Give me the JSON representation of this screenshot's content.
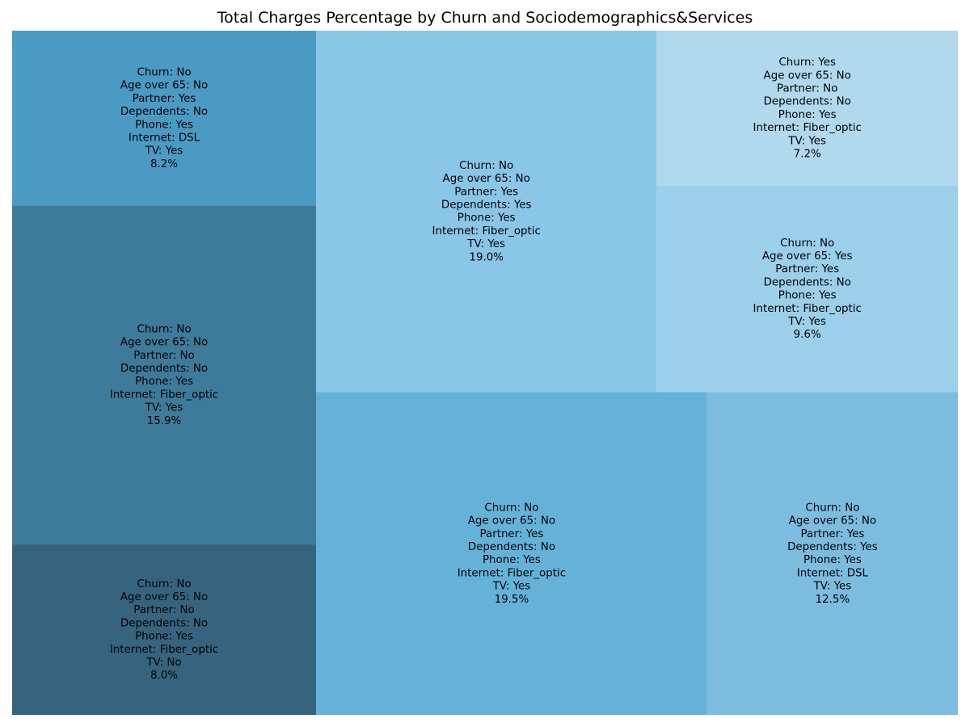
{
  "chart_data": {
    "type": "treemap",
    "title": "Total Charges Percentage by Churn and Sociodemographics&Services",
    "tiles": [
      {
        "lines": [
          "Churn: No",
          "Age over 65: No",
          "Partner: Yes",
          "Dependents: No",
          "Phone: Yes",
          "Internet: DSL",
          "TV: Yes",
          "8.2%"
        ],
        "value": 8.2,
        "color": "#4b9ac3"
      },
      {
        "lines": [
          "Churn: No",
          "Age over 65: No",
          "Partner: No",
          "Dependents: No",
          "Phone: Yes",
          "Internet: Fiber_optic",
          "TV: Yes",
          "15.9%"
        ],
        "value": 15.9,
        "color": "#3e7a99"
      },
      {
        "lines": [
          "Churn: No",
          "Age over 65: No",
          "Partner: No",
          "Dependents: No",
          "Phone: Yes",
          "Internet: Fiber_optic",
          "TV: No",
          "8.0%"
        ],
        "value": 8.0,
        "color": "#36647e"
      },
      {
        "lines": [
          "Churn: No",
          "Age over 65: No",
          "Partner: Yes",
          "Dependents: Yes",
          "Phone: Yes",
          "Internet: Fiber_optic",
          "TV: Yes",
          "19.0%"
        ],
        "value": 19.0,
        "color": "#89c6e7"
      },
      {
        "lines": [
          "Churn: No",
          "Age over 65: No",
          "Partner: Yes",
          "Dependents: No",
          "Phone: Yes",
          "Internet: Fiber_optic",
          "TV: Yes",
          "19.5%"
        ],
        "value": 19.5,
        "color": "#65b2d9"
      },
      {
        "lines": [
          "Churn: Yes",
          "Age over 65: No",
          "Partner: No",
          "Dependents: No",
          "Phone: Yes",
          "Internet: Fiber_optic",
          "TV: Yes",
          "7.2%"
        ],
        "value": 7.2,
        "color": "#b0d9ee"
      },
      {
        "lines": [
          "Churn: No",
          "Age over 65: Yes",
          "Partner: Yes",
          "Dependents: No",
          "Phone: Yes",
          "Internet: Fiber_optic",
          "TV: Yes",
          "9.6%"
        ],
        "value": 9.6,
        "color": "#9bcfea"
      },
      {
        "lines": [
          "Churn: No",
          "Age over 65: No",
          "Partner: Yes",
          "Dependents: Yes",
          "Phone: Yes",
          "Internet: DSL",
          "TV: Yes",
          "12.5%"
        ],
        "value": 12.5,
        "color": "#7bbcdf"
      }
    ]
  }
}
